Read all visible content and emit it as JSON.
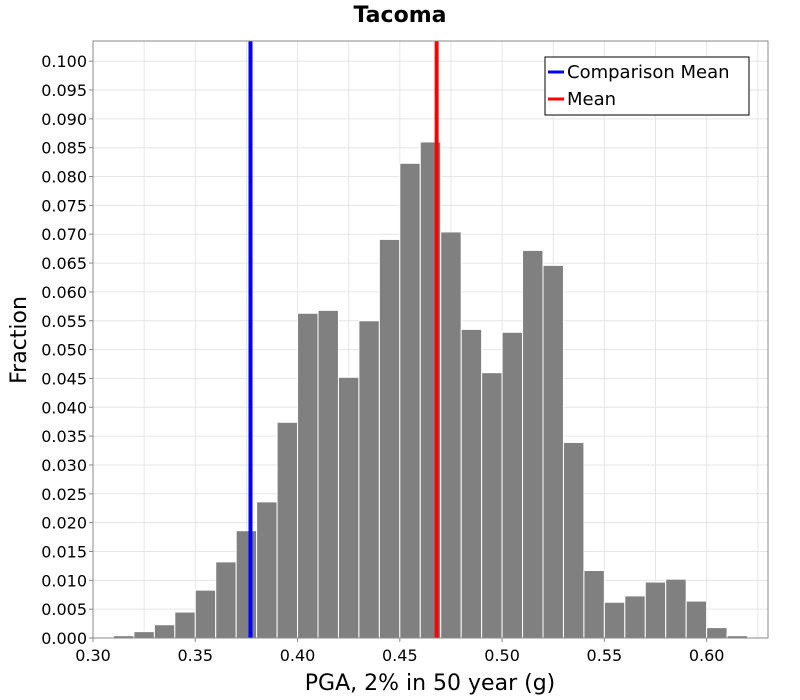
{
  "chart_data": {
    "type": "bar",
    "title": "Tacoma",
    "xlabel": "PGA, 2% in 50 year (g)",
    "ylabel": "Fraction",
    "xlim": [
      0.3,
      0.63
    ],
    "ylim": [
      0.0,
      0.1035
    ],
    "grid": true,
    "bin_width": 0.01,
    "bin_starts": [
      0.31,
      0.32,
      0.33,
      0.34,
      0.35,
      0.36,
      0.37,
      0.38,
      0.39,
      0.4,
      0.41,
      0.42,
      0.43,
      0.44,
      0.45,
      0.46,
      0.47,
      0.48,
      0.49,
      0.5,
      0.51,
      0.52,
      0.53,
      0.54,
      0.55,
      0.56,
      0.57,
      0.58,
      0.59,
      0.6,
      0.61
    ],
    "values": [
      0.0004,
      0.0011,
      0.0023,
      0.0045,
      0.0083,
      0.0132,
      0.0186,
      0.0236,
      0.0374,
      0.0563,
      0.0568,
      0.0452,
      0.055,
      0.0691,
      0.0823,
      0.086,
      0.0704,
      0.0535,
      0.046,
      0.053,
      0.0672,
      0.0646,
      0.0339,
      0.0117,
      0.0062,
      0.0073,
      0.0097,
      0.0102,
      0.0064,
      0.0018,
      0.0004
    ],
    "x_ticks": [
      "0.30",
      "0.35",
      "0.40",
      "0.45",
      "0.50",
      "0.55",
      "0.60"
    ],
    "y_ticks": [
      "0.000",
      "0.005",
      "0.010",
      "0.015",
      "0.020",
      "0.025",
      "0.030",
      "0.035",
      "0.040",
      "0.045",
      "0.050",
      "0.055",
      "0.060",
      "0.065",
      "0.070",
      "0.075",
      "0.080",
      "0.085",
      "0.090",
      "0.095",
      "0.100"
    ],
    "reference_lines": [
      {
        "name": "Comparison Mean",
        "x": 0.377,
        "color": "#0000ff"
      },
      {
        "name": "Mean",
        "x": 0.468,
        "color": "#ff0000"
      }
    ],
    "legend_position": "top-right",
    "legend": [
      {
        "label": "Comparison Mean",
        "color": "#0000ff"
      },
      {
        "label": "Mean",
        "color": "#ff0000"
      }
    ]
  }
}
